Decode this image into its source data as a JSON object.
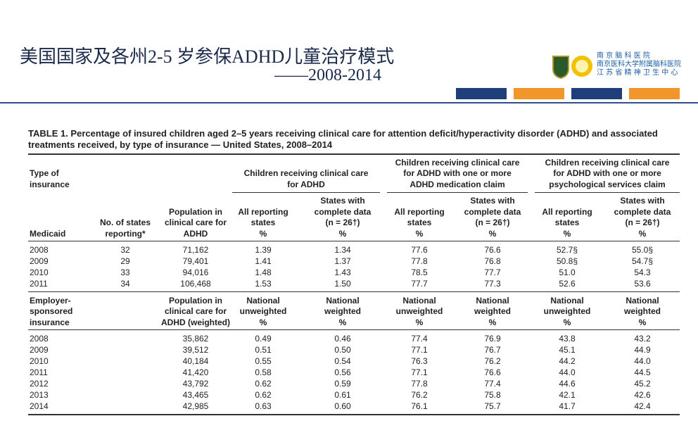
{
  "header": {
    "title": "美国国家及各州2-5 岁参保ADHD儿童治疗模式",
    "subtitle": "——2008-2014",
    "org": [
      "南 京 脑 科 医 院",
      "南京医科大学附属脑科医院",
      "江 苏 省 精 神 卫 生 中 心"
    ]
  },
  "table": {
    "caption": [
      "TABLE 1. Percentage of insured children aged 2–5 years receiving clinical care for attention deficit/hyperactivity disorder (ADHD) and associated",
      "treatments received, by type of insurance — United States, 2008–2014"
    ],
    "type_label": [
      "Type of",
      "insurance"
    ],
    "groups": [
      [
        "Children receiving clinical care",
        "for ADHD"
      ],
      [
        "Children receiving clinical care",
        "for ADHD with one or more",
        "ADHD medication claim"
      ],
      [
        "Children receiving clinical care",
        "for ADHD with one or more",
        "psychological services claim"
      ]
    ],
    "sections": [
      {
        "columns": [
          [
            "Medicaid"
          ],
          [
            "No. of states",
            "reporting*"
          ],
          [
            "Population in",
            "clinical care for",
            "ADHD"
          ],
          [
            "All reporting",
            "states",
            "%"
          ],
          [
            "States with",
            "complete data",
            "(n = 26†)",
            "%"
          ],
          [
            "All reporting",
            "states",
            "%"
          ],
          [
            "States with",
            "complete data",
            "(n = 26†)",
            "%"
          ],
          [
            "All reporting",
            "states",
            "%"
          ],
          [
            "States with",
            "complete data",
            "(n = 26†)",
            "%"
          ]
        ],
        "rows": [
          [
            "2008",
            "32",
            "71,162",
            "1.39",
            "1.34",
            "77.6",
            "76.6",
            "52.7§",
            "55.0§"
          ],
          [
            "2009",
            "29",
            "79,401",
            "1.41",
            "1.37",
            "77.8",
            "76.8",
            "50.8§",
            "54.7§"
          ],
          [
            "2010",
            "33",
            "94,016",
            "1.48",
            "1.43",
            "78.5",
            "77.7",
            "51.0",
            "54.3"
          ],
          [
            "2011",
            "34",
            "106,468",
            "1.53",
            "1.50",
            "77.7",
            "77.3",
            "52.6",
            "53.6"
          ]
        ]
      },
      {
        "columns": [
          [
            "Employer-",
            "sponsored",
            "insurance"
          ],
          [],
          [
            "Population in",
            "clinical care for",
            "ADHD (weighted)"
          ],
          [
            "National",
            "unweighted",
            "%"
          ],
          [
            "National",
            "weighted",
            "%"
          ],
          [
            "National",
            "unweighted",
            "%"
          ],
          [
            "National",
            "weighted",
            "%"
          ],
          [
            "National",
            "unweighted",
            "%"
          ],
          [
            "National",
            "weighted",
            "%"
          ]
        ],
        "rows": [
          [
            "2008",
            "",
            "35,862",
            "0.49",
            "0.46",
            "77.4",
            "76.9",
            "43.8",
            "43.2"
          ],
          [
            "2009",
            "",
            "39,512",
            "0.51",
            "0.50",
            "77.1",
            "76.7",
            "45.1",
            "44.9"
          ],
          [
            "2010",
            "",
            "40,184",
            "0.55",
            "0.54",
            "76.3",
            "76.2",
            "44.2",
            "44.0"
          ],
          [
            "2011",
            "",
            "41,420",
            "0.58",
            "0.56",
            "77.1",
            "76.6",
            "44.0",
            "44.5"
          ],
          [
            "2012",
            "",
            "43,792",
            "0.62",
            "0.59",
            "77.8",
            "77.4",
            "44.6",
            "45.2"
          ],
          [
            "2013",
            "",
            "43,465",
            "0.62",
            "0.61",
            "76.2",
            "75.8",
            "42.1",
            "42.6"
          ],
          [
            "2014",
            "",
            "42,985",
            "0.63",
            "0.60",
            "76.1",
            "75.7",
            "41.7",
            "42.4"
          ]
        ]
      }
    ]
  }
}
